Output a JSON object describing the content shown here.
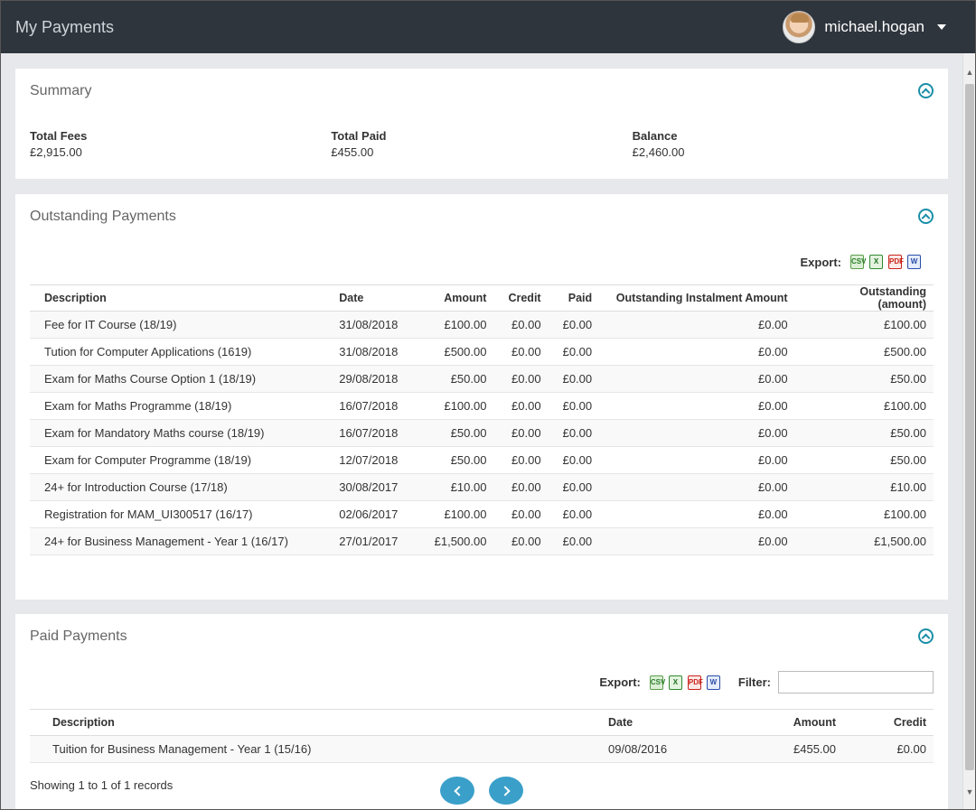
{
  "header": {
    "title": "My Payments",
    "username": "michael.hogan"
  },
  "summary": {
    "title": "Summary",
    "items": [
      {
        "label": "Total Fees",
        "value": "£2,915.00"
      },
      {
        "label": "Total Paid",
        "value": "£455.00"
      },
      {
        "label": "Balance",
        "value": "£2,460.00"
      }
    ]
  },
  "outstanding": {
    "title": "Outstanding Payments",
    "export_label": "Export:",
    "columns": [
      "Description",
      "Date",
      "Amount",
      "Credit",
      "Paid",
      "Outstanding Instalment Amount",
      "Outstanding (amount)"
    ],
    "rows": [
      [
        "Fee for IT Course (18/19)",
        "31/08/2018",
        "£100.00",
        "£0.00",
        "£0.00",
        "£0.00",
        "£100.00"
      ],
      [
        "Tution for Computer Applications (1619)",
        "31/08/2018",
        "£500.00",
        "£0.00",
        "£0.00",
        "£0.00",
        "£500.00"
      ],
      [
        "Exam for Maths Course Option 1 (18/19)",
        "29/08/2018",
        "£50.00",
        "£0.00",
        "£0.00",
        "£0.00",
        "£50.00"
      ],
      [
        "Exam for Maths Programme (18/19)",
        "16/07/2018",
        "£100.00",
        "£0.00",
        "£0.00",
        "£0.00",
        "£100.00"
      ],
      [
        "Exam for Mandatory Maths course (18/19)",
        "16/07/2018",
        "£50.00",
        "£0.00",
        "£0.00",
        "£0.00",
        "£50.00"
      ],
      [
        "Exam for Computer Programme (18/19)",
        "12/07/2018",
        "£50.00",
        "£0.00",
        "£0.00",
        "£0.00",
        "£50.00"
      ],
      [
        "24+  for Introduction Course (17/18)",
        "30/08/2017",
        "£10.00",
        "£0.00",
        "£0.00",
        "£0.00",
        "£10.00"
      ],
      [
        "Registration for MAM_UI300517 (16/17)",
        "02/06/2017",
        "£100.00",
        "£0.00",
        "£0.00",
        "£0.00",
        "£100.00"
      ],
      [
        "24+ for Business Management - Year 1 (16/17)",
        "27/01/2017",
        "£1,500.00",
        "£0.00",
        "£0.00",
        "£0.00",
        "£1,500.00"
      ]
    ]
  },
  "paid": {
    "title": "Paid Payments",
    "export_label": "Export:",
    "filter_label": "Filter:",
    "filter_value": "",
    "columns": [
      "Description",
      "Date",
      "Amount",
      "Credit"
    ],
    "rows": [
      [
        "Tuition for Business Management - Year 1 (15/16)",
        "09/08/2016",
        "£455.00",
        "£0.00"
      ]
    ],
    "showing_text": "Showing 1 to 1 of 1 records"
  },
  "export_icons": [
    {
      "name": "csv-export-icon",
      "glyph": "CSV"
    },
    {
      "name": "excel-export-icon",
      "glyph": "X"
    },
    {
      "name": "pdf-export-icon",
      "glyph": "PDF"
    },
    {
      "name": "word-export-icon",
      "glyph": "W"
    }
  ],
  "colors": {
    "topbar": "#2f353d",
    "accent": "#1a8fa8",
    "pager": "#3a9fc9"
  }
}
